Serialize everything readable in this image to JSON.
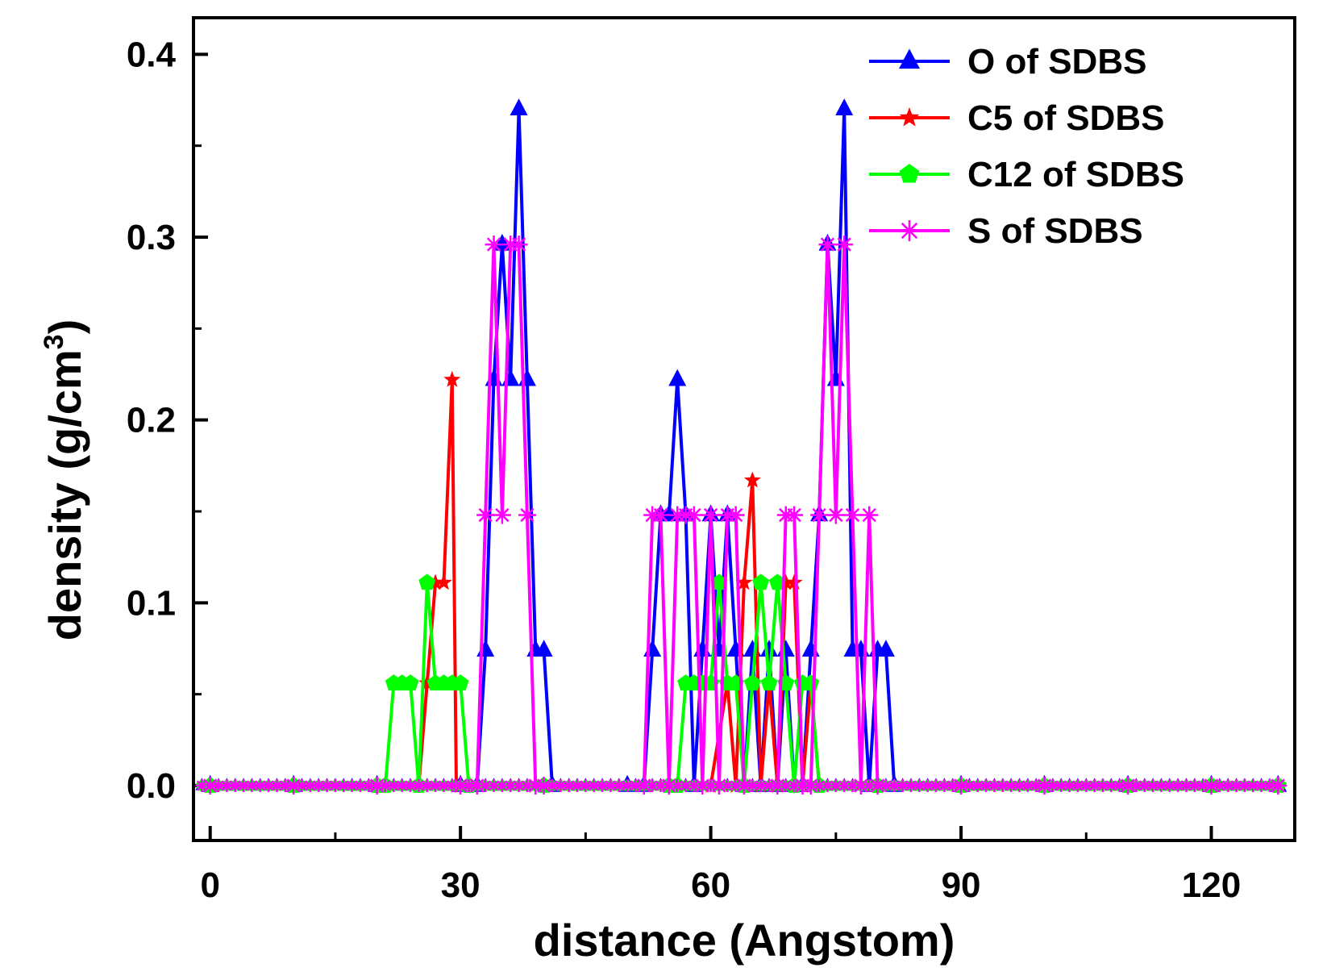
{
  "chart_data": {
    "type": "line",
    "title": "",
    "xlabel": "distance (Angstom)",
    "ylabel_main": "density (g/cm",
    "ylabel_sup": "3",
    "ylabel_close": ")",
    "xlim": [
      -2,
      130
    ],
    "ylim": [
      -0.03,
      0.42
    ],
    "xticks": [
      0,
      30,
      60,
      90,
      120
    ],
    "xtick_labels": [
      "0",
      "30",
      "60",
      "90",
      "120"
    ],
    "yticks": [
      0.0,
      0.1,
      0.2,
      0.3,
      0.4
    ],
    "ytick_labels": [
      "0.0",
      "0.1",
      "0.2",
      "0.3",
      "0.4"
    ],
    "legend_position": "top-right",
    "series": [
      {
        "name": "O of SDBS",
        "color": "#0000ff",
        "marker": "triangle",
        "x": [
          0,
          10,
          20,
          30,
          32,
          33,
          34,
          35,
          36,
          37,
          38,
          39,
          40,
          41,
          50,
          52,
          53,
          54,
          55,
          56,
          57,
          58,
          59,
          60,
          61,
          62,
          63,
          64,
          65,
          66,
          67,
          68,
          69,
          70,
          71,
          72,
          73,
          74,
          75,
          76,
          77,
          78,
          79,
          80,
          81,
          82,
          90,
          100,
          110,
          120,
          128
        ],
        "y": [
          0,
          0,
          0,
          0,
          0,
          0.074,
          0.222,
          0.296,
          0.222,
          0.37,
          0.222,
          0.074,
          0.074,
          0,
          0,
          0,
          0.074,
          0.148,
          0.148,
          0.222,
          0.148,
          0,
          0.074,
          0.148,
          0.074,
          0.148,
          0.074,
          0,
          0.074,
          0,
          0.074,
          0,
          0.074,
          0,
          0,
          0.074,
          0.148,
          0.296,
          0.222,
          0.37,
          0.074,
          0.074,
          0,
          0.074,
          0.074,
          0,
          0,
          0,
          0,
          0,
          0
        ]
      },
      {
        "name": "C5 of SDBS",
        "color": "#ff0000",
        "marker": "star",
        "x": [
          0,
          10,
          20,
          25,
          26,
          27,
          28,
          29,
          29.5,
          30,
          40,
          55,
          60,
          62,
          63,
          64,
          65,
          66,
          67,
          68,
          69,
          70,
          71,
          72,
          73,
          80,
          90,
          100,
          110,
          120,
          128
        ],
        "y": [
          0,
          0,
          0,
          0,
          0.056,
          0.111,
          0.111,
          0.222,
          0,
          0,
          0,
          0,
          0,
          0.056,
          0,
          0.111,
          0.167,
          0,
          0.056,
          0,
          0.111,
          0.111,
          0,
          0.056,
          0,
          0,
          0,
          0,
          0,
          0,
          0
        ]
      },
      {
        "name": "C12 of SDBS",
        "color": "#00ff00",
        "marker": "pentagon",
        "x": [
          0,
          10,
          20,
          21,
          22,
          23,
          24,
          25,
          26,
          27,
          28,
          29,
          30,
          31,
          40,
          55,
          56,
          57,
          58,
          59,
          60,
          61,
          62,
          63,
          64,
          65,
          66,
          67,
          68,
          69,
          70,
          71,
          72,
          73,
          80,
          90,
          100,
          110,
          120,
          128
        ],
        "y": [
          0,
          0,
          0,
          0,
          0.056,
          0.056,
          0.056,
          0,
          0.111,
          0.056,
          0.056,
          0.056,
          0.056,
          0,
          0,
          0,
          0,
          0.056,
          0.056,
          0.056,
          0.056,
          0.111,
          0.056,
          0.056,
          0,
          0.056,
          0.111,
          0.056,
          0.111,
          0.056,
          0,
          0.056,
          0.056,
          0,
          0,
          0,
          0,
          0,
          0,
          0
        ]
      },
      {
        "name": "S of SDBS",
        "color": "#ff00ff",
        "marker": "asterisk",
        "x": [
          0,
          10,
          20,
          30,
          32,
          33,
          34,
          35,
          36,
          37,
          38,
          39,
          40,
          52,
          53,
          54,
          55,
          56,
          57,
          58,
          59,
          60,
          61,
          62,
          63,
          64,
          68,
          69,
          70,
          71,
          72,
          73,
          74,
          75,
          76,
          77,
          78,
          79,
          80,
          90,
          100,
          110,
          120,
          128
        ],
        "y": [
          0,
          0,
          0,
          0,
          0,
          0.148,
          0.296,
          0.148,
          0.296,
          0.296,
          0.148,
          0,
          0,
          0,
          0.148,
          0.148,
          0,
          0.148,
          0.148,
          0.148,
          0,
          0.148,
          0,
          0.148,
          0.148,
          0,
          0,
          0.148,
          0.148,
          0,
          0,
          0.148,
          0.296,
          0.148,
          0.296,
          0.148,
          0,
          0.148,
          0,
          0,
          0,
          0,
          0,
          0
        ]
      }
    ]
  }
}
